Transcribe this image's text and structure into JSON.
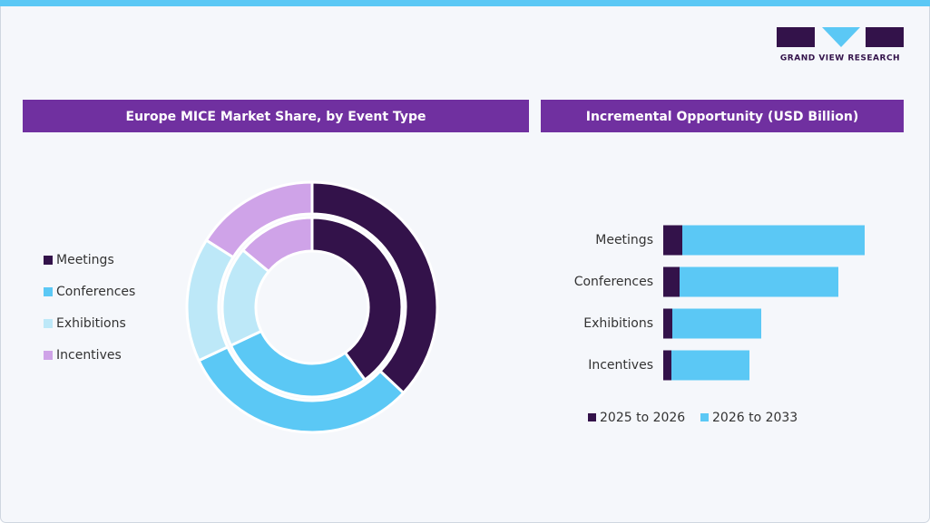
{
  "logo": {
    "text": "GRAND VIEW RESEARCH"
  },
  "chart_data": [
    {
      "type": "donut",
      "title": "Europe MICE Market Share, by Event Type",
      "categories": [
        "Meetings",
        "Conferences",
        "Exhibitions",
        "Incentives"
      ],
      "colors": [
        "#33124a",
        "#5bc8f5",
        "#bde8f8",
        "#cfa3e8"
      ],
      "legend": "left",
      "series": [
        {
          "values": [
            40,
            28,
            18,
            14
          ]
        },
        {
          "values": [
            37,
            31,
            16,
            16
          ]
        }
      ]
    },
    {
      "type": "stacked-bar-horizontal",
      "title": "Incremental Opportunity (USD Billion)",
      "categories": [
        "Meetings",
        "Conferences",
        "Exhibitions",
        "Incentives"
      ],
      "xlim": [
        0,
        10
      ],
      "legend": "bottom",
      "series": [
        {
          "name": "2025 to 2026",
          "color": "#33124a",
          "values": [
            0.84,
            0.72,
            0.4,
            0.36
          ]
        },
        {
          "name": "2026 to 2033",
          "color": "#5bc8f5",
          "values": [
            8.04,
            7.0,
            3.92,
            3.44
          ]
        }
      ]
    }
  ]
}
